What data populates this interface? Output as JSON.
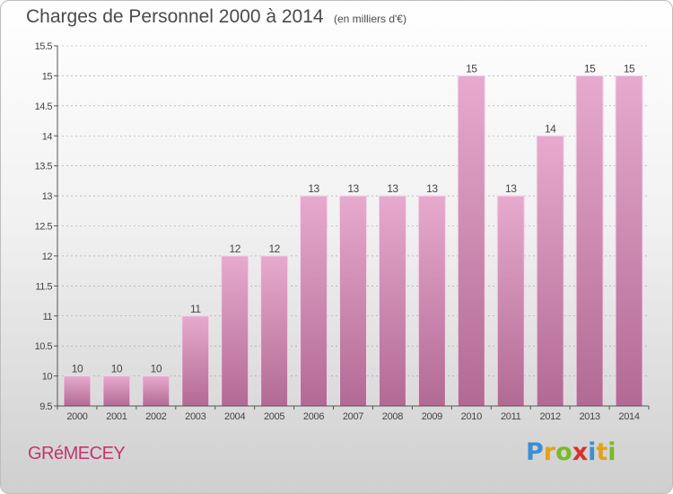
{
  "title": "Charges de Personnel 2000 à 2014",
  "subtitle": "(en milliers d'€)",
  "commune": "GRéMECEY",
  "brand": {
    "letters": [
      "P",
      "r",
      "o",
      "x",
      "i",
      "t",
      "i"
    ],
    "colors": [
      "#3d8fd1",
      "#e3a21a",
      "#7ab929",
      "#d9302b",
      "#3d8fd1",
      "#e3a21a",
      "#7ab929"
    ]
  },
  "colors": {
    "bar_top": "#e7aace",
    "bar_bottom": "#b26a94",
    "bar_edge": "#f4d6e7",
    "axis": "#555555",
    "grid": "#999999",
    "text": "#444444"
  },
  "chart_data": {
    "type": "bar",
    "title": "Charges de Personnel 2000 à 2014",
    "categories": [
      "2000",
      "2001",
      "2002",
      "2003",
      "2004",
      "2005",
      "2006",
      "2007",
      "2008",
      "2009",
      "2010",
      "2011",
      "2012",
      "2013",
      "2014"
    ],
    "values": [
      10,
      10,
      10,
      11,
      12,
      12,
      13,
      13,
      13,
      13,
      15,
      13,
      14,
      15,
      15
    ],
    "ylim": [
      9.5,
      15.5
    ],
    "yticks": [
      "9.5",
      "10",
      "10.5",
      "11",
      "11.5",
      "12",
      "12.5",
      "13",
      "13.5",
      "14",
      "14.5",
      "15",
      "15.5"
    ],
    "xlabel": "",
    "ylabel": "",
    "grid": "dashed horizontal",
    "data_labels": true
  }
}
